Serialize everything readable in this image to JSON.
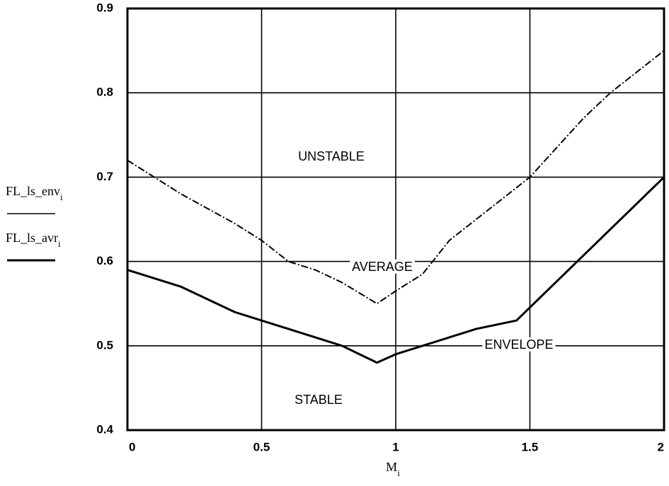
{
  "chart_data": {
    "type": "line",
    "x_label": "M",
    "x_label_subscript": "i",
    "xlim": [
      0,
      2
    ],
    "xticks": [
      0,
      0.5,
      1,
      1.5,
      2
    ],
    "ylim": [
      0.4,
      0.9
    ],
    "yticks": [
      0.4,
      0.5,
      0.6,
      0.7,
      0.8,
      0.9
    ],
    "grid": true,
    "series": [
      {
        "name": "FL_ls_env",
        "subscript": "i",
        "color": "#000000",
        "style": "solid",
        "x": [
          0,
          0.2,
          0.4,
          0.5,
          0.6,
          0.8,
          0.93,
          1.0,
          1.1,
          1.2,
          1.3,
          1.45,
          2.0
        ],
        "values": [
          0.59,
          0.57,
          0.54,
          0.53,
          0.52,
          0.5,
          0.48,
          0.49,
          0.5,
          0.51,
          0.52,
          0.53,
          0.7
        ]
      },
      {
        "name": "FL_ls_avr",
        "subscript": "i",
        "color": "#000000",
        "style": "dashdot",
        "x": [
          0,
          0.2,
          0.4,
          0.5,
          0.6,
          0.7,
          0.8,
          0.93,
          1.0,
          1.1,
          1.2,
          1.3,
          1.4,
          1.5,
          1.6,
          1.7,
          1.8,
          1.9,
          2.0
        ],
        "values": [
          0.72,
          0.68,
          0.645,
          0.625,
          0.6,
          0.59,
          0.575,
          0.55,
          0.565,
          0.585,
          0.625,
          0.65,
          0.675,
          0.7,
          0.735,
          0.77,
          0.8,
          0.825,
          0.85
        ]
      }
    ],
    "annotations": [
      "UNSTABLE",
      "AVERAGE",
      "ENVELOPE",
      "STABLE"
    ]
  }
}
